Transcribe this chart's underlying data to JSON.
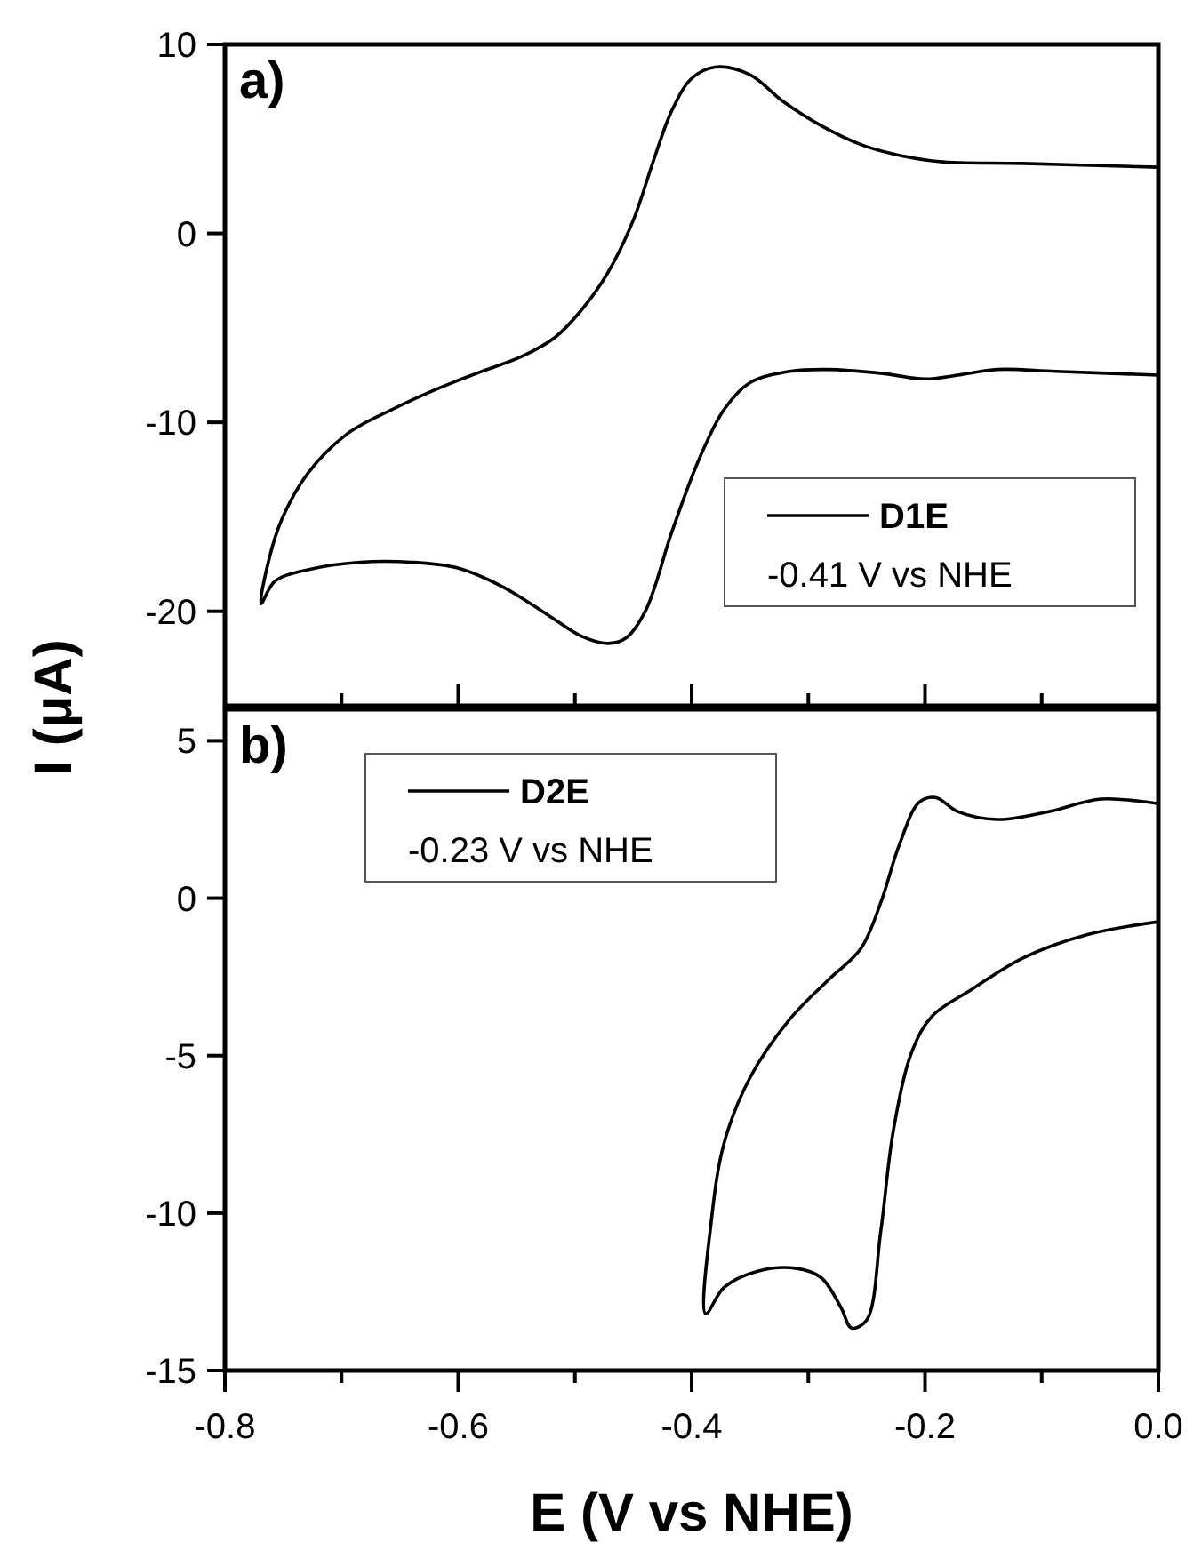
{
  "chart_data": [
    {
      "type": "line",
      "title": "a)",
      "ylabel": "I (μA)",
      "xlim": [
        -0.8,
        0.0
      ],
      "ylim": [
        -25,
        10
      ],
      "xticks": [
        {
          "value": -0.8,
          "label": null
        },
        {
          "value": -0.7,
          "label": null
        },
        {
          "value": -0.6,
          "label": null
        },
        {
          "value": -0.5,
          "label": null
        },
        {
          "value": -0.4,
          "label": null
        },
        {
          "value": -0.3,
          "label": null
        },
        {
          "value": -0.2,
          "label": null
        },
        {
          "value": -0.1,
          "label": null
        },
        {
          "value": 0.0,
          "label": null
        }
      ],
      "yticks": [
        -20,
        -10,
        0,
        10
      ],
      "tick_labels": "y",
      "legend": "bottom right",
      "annotations": [
        "-0.41 V vs NHE"
      ],
      "series": [
        {
          "name": "D1E",
          "color": "#000000",
          "x": [
            0.0,
            -0.116,
            -0.188,
            -0.227,
            -0.255,
            -0.289,
            -0.322,
            -0.35,
            -0.38,
            -0.4,
            -0.417,
            -0.433,
            -0.45,
            -0.472,
            -0.495,
            -0.517,
            -0.545,
            -0.584,
            -0.617,
            -0.656,
            -0.695,
            -0.729,
            -0.751,
            -0.762,
            -0.769,
            -0.757,
            -0.729,
            -0.684,
            -0.64,
            -0.601,
            -0.562,
            -0.523,
            -0.495,
            -0.472,
            -0.456,
            -0.439,
            -0.417,
            -0.394,
            -0.372,
            -0.35,
            -0.316,
            -0.283,
            -0.238,
            -0.2,
            -0.172,
            -0.138,
            -0.088,
            0.0
          ],
          "values": [
            3.5,
            3.7,
            3.8,
            4.2,
            4.7,
            5.7,
            7.0,
            8.4,
            8.8,
            8.2,
            6.5,
            3.8,
            0.7,
            -2.1,
            -4.1,
            -5.5,
            -6.5,
            -7.4,
            -8.2,
            -9.3,
            -10.6,
            -12.7,
            -15.1,
            -17.2,
            -19.6,
            -18.4,
            -17.8,
            -17.4,
            -17.4,
            -17.7,
            -18.7,
            -20.2,
            -21.3,
            -21.7,
            -21.4,
            -19.9,
            -15.8,
            -12.0,
            -9.3,
            -7.9,
            -7.3,
            -7.2,
            -7.4,
            -7.7,
            -7.5,
            -7.2,
            -7.3,
            -7.5
          ]
        }
      ]
    },
    {
      "type": "line",
      "title": "b)",
      "xlabel": "E (V vs NHE)",
      "xlim": [
        -0.8,
        0.0
      ],
      "ylim": [
        -15,
        6
      ],
      "xticks": [
        -0.8,
        {
          "value": -0.7,
          "label": null
        },
        -0.6,
        {
          "value": -0.5,
          "label": null
        },
        -0.4,
        {
          "value": -0.3,
          "label": null
        },
        -0.2,
        {
          "value": -0.1,
          "label": null
        },
        {
          "value": 0.0,
          "label": "0.0"
        }
      ],
      "yticks": [
        -15,
        -10,
        -5,
        0,
        5
      ],
      "legend": "top left",
      "annotations": [
        "-0.23 V vs NHE"
      ],
      "series": [
        {
          "name": "D2E",
          "color": "#000000",
          "x": [
            0.0,
            -0.049,
            -0.094,
            -0.138,
            -0.172,
            -0.191,
            -0.205,
            -0.222,
            -0.238,
            -0.255,
            -0.283,
            -0.316,
            -0.35,
            -0.372,
            -0.383,
            -0.388,
            -0.372,
            -0.344,
            -0.311,
            -0.289,
            -0.272,
            -0.263,
            -0.25,
            -0.238,
            -0.227,
            -0.211,
            -0.194,
            -0.16,
            -0.116,
            -0.06,
            0.0
          ],
          "values": [
            3.0,
            3.15,
            2.75,
            2.5,
            2.75,
            3.2,
            3.05,
            1.7,
            -0.15,
            -1.6,
            -2.6,
            -3.85,
            -5.7,
            -7.75,
            -10.2,
            -13.2,
            -12.35,
            -11.85,
            -11.75,
            -12.05,
            -13.0,
            -13.65,
            -13.4,
            -10.6,
            -7.35,
            -4.85,
            -3.75,
            -2.9,
            -1.9,
            -1.15,
            -0.75
          ]
        }
      ]
    }
  ]
}
